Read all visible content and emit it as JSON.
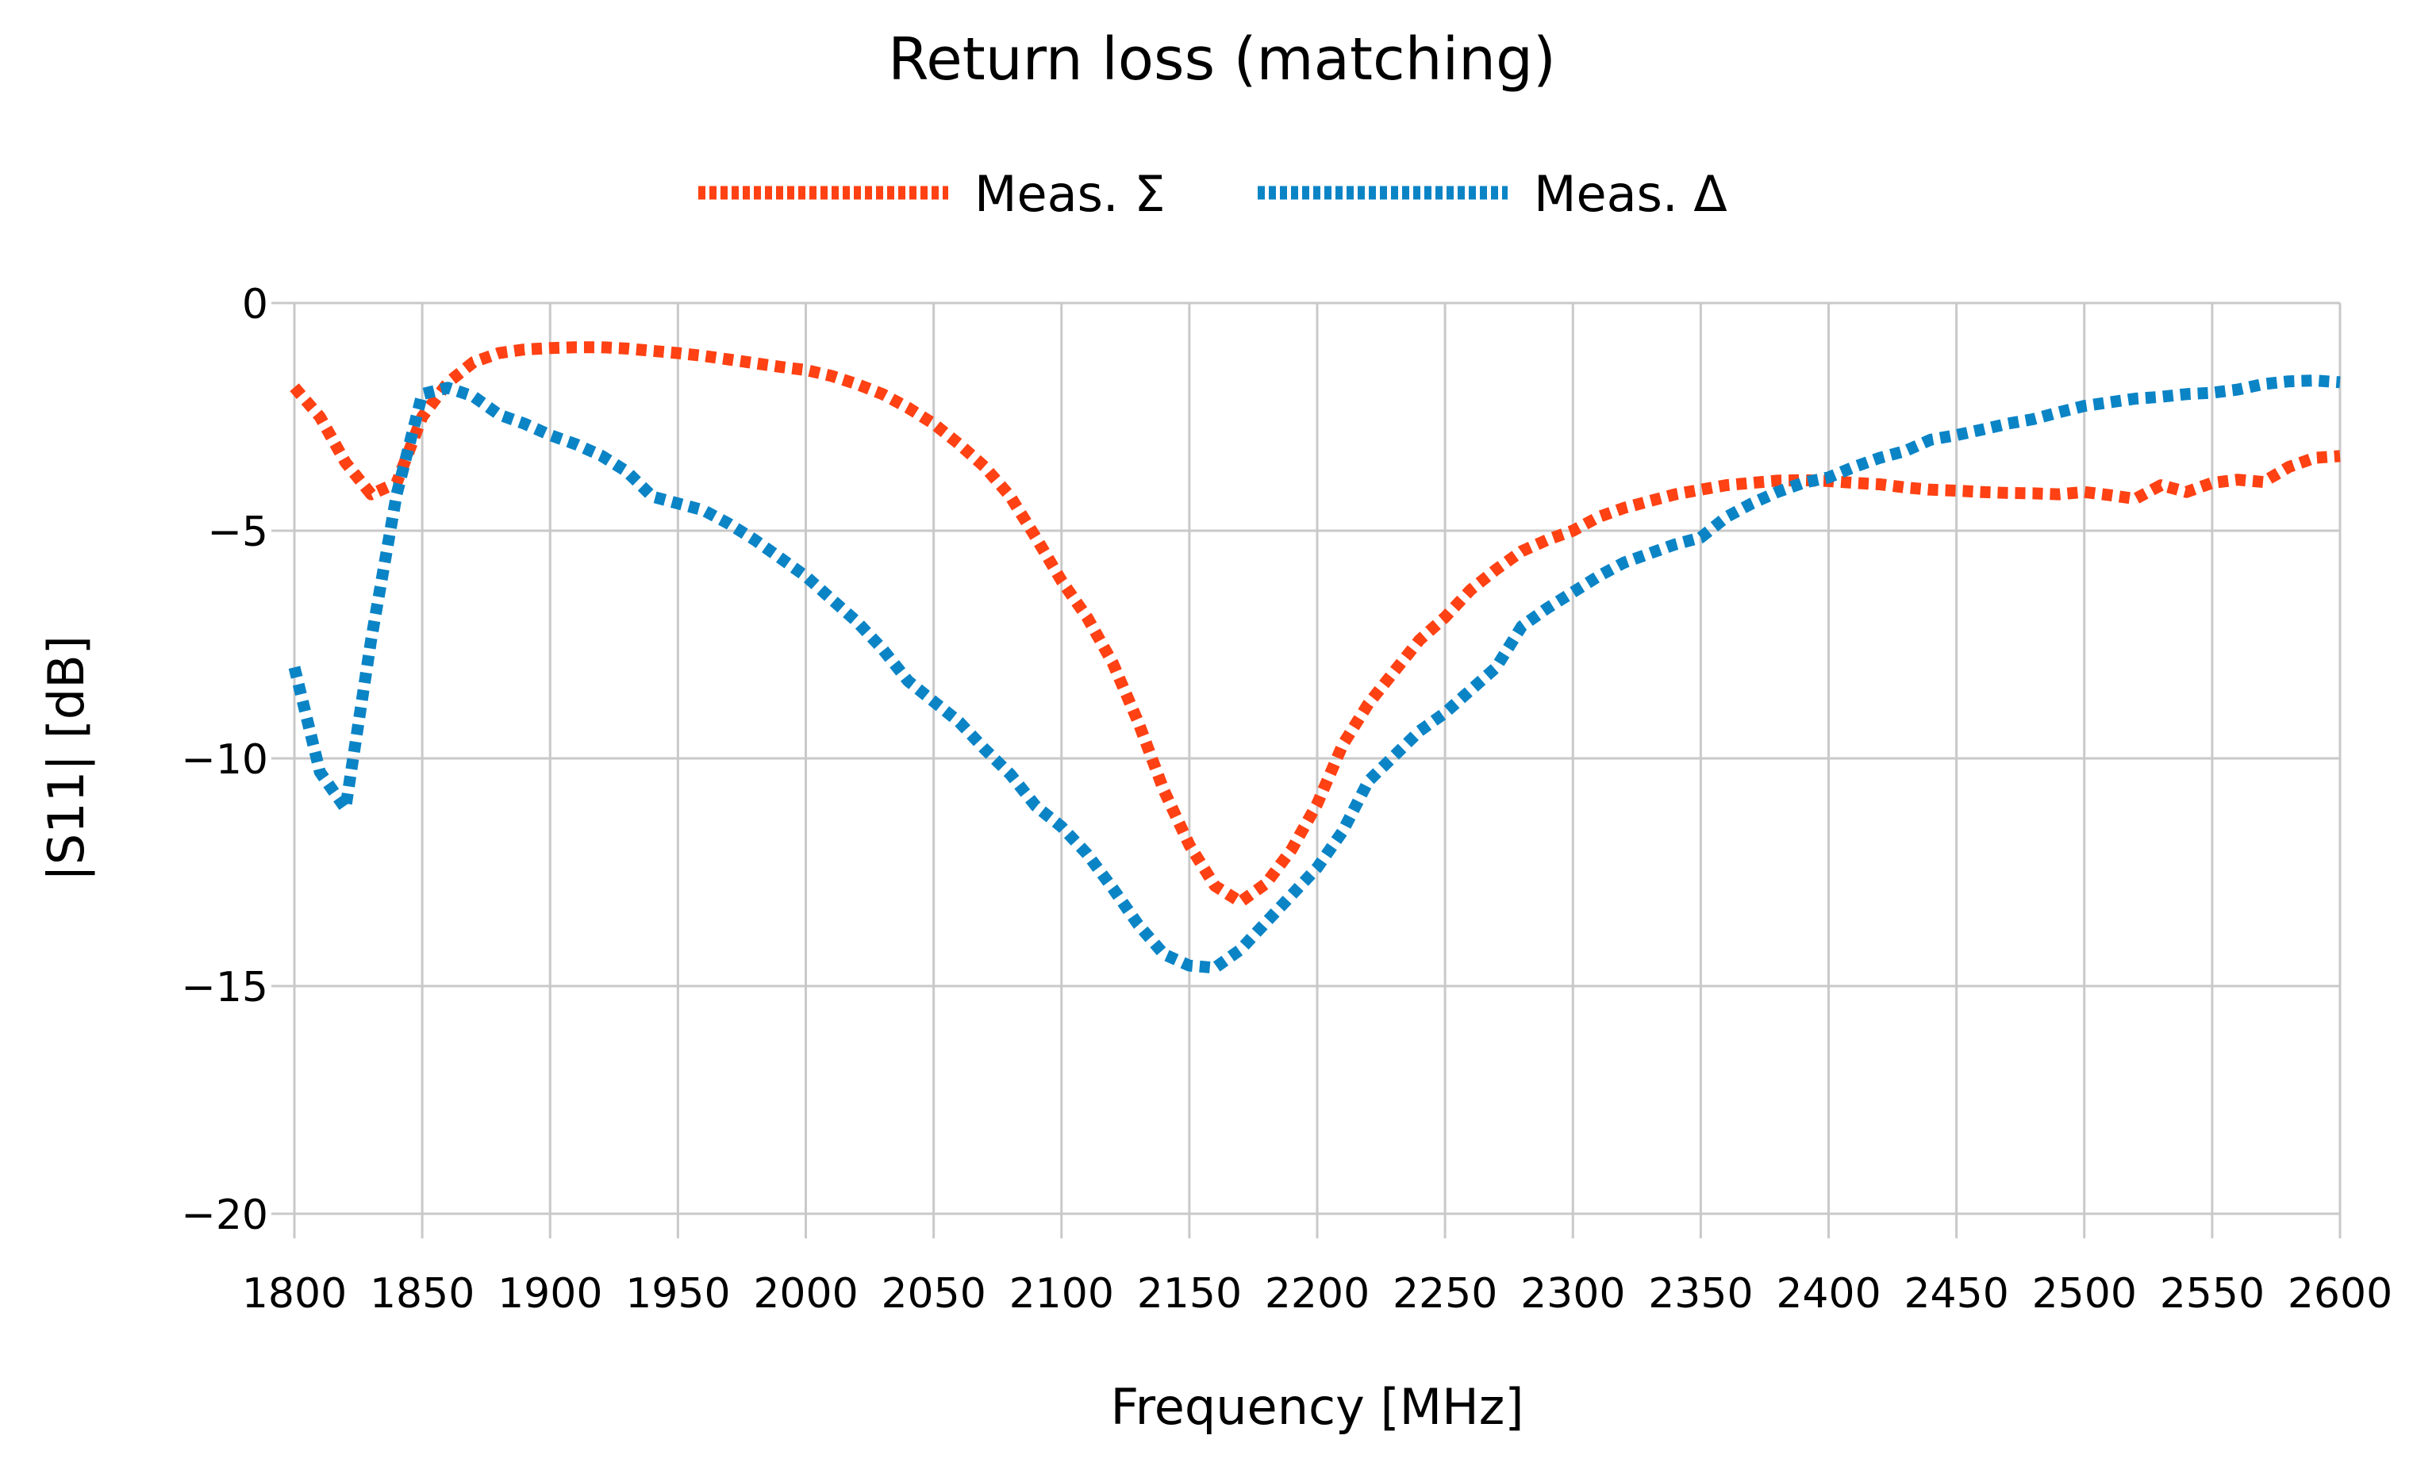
{
  "title": "Return loss (matching)",
  "legend": {
    "items": [
      {
        "label": "Meas. Σ",
        "color": "#ff4113"
      },
      {
        "label": "Meas. Δ",
        "color": "#0b84c6"
      }
    ]
  },
  "axes": {
    "xlabel": "Frequency [MHz]",
    "ylabel": "|S11| [dB]"
  },
  "chart_data": {
    "type": "line",
    "title": "Return loss (matching)",
    "xlabel": "Frequency [MHz]",
    "ylabel": "|S11| [dB]",
    "xlim": [
      1800,
      2600
    ],
    "ylim": [
      -20,
      0
    ],
    "x_ticks": [
      1800,
      1850,
      1900,
      1950,
      2000,
      2050,
      2100,
      2150,
      2200,
      2250,
      2300,
      2350,
      2400,
      2450,
      2500,
      2550,
      2600
    ],
    "y_ticks": [
      0,
      -5,
      -10,
      -15,
      -20
    ],
    "grid": true,
    "grid_color": "#c9c9c9",
    "legend_position": "top-center",
    "line_style": "dotted",
    "x": [
      1800,
      1810,
      1820,
      1830,
      1840,
      1850,
      1860,
      1870,
      1880,
      1890,
      1900,
      1910,
      1920,
      1930,
      1940,
      1950,
      1960,
      1970,
      1980,
      1990,
      2000,
      2010,
      2020,
      2030,
      2040,
      2050,
      2060,
      2070,
      2080,
      2090,
      2100,
      2110,
      2120,
      2130,
      2140,
      2150,
      2160,
      2170,
      2180,
      2190,
      2200,
      2210,
      2220,
      2230,
      2240,
      2250,
      2260,
      2270,
      2280,
      2290,
      2300,
      2310,
      2320,
      2330,
      2340,
      2350,
      2360,
      2370,
      2380,
      2390,
      2400,
      2410,
      2420,
      2430,
      2440,
      2450,
      2460,
      2470,
      2480,
      2490,
      2500,
      2510,
      2520,
      2530,
      2540,
      2550,
      2560,
      2570,
      2580,
      2590,
      2600
    ],
    "series": [
      {
        "name": "Meas. Σ",
        "color": "#ff4113",
        "values": [
          -1.85,
          -2.5,
          -3.5,
          -4.2,
          -3.95,
          -2.5,
          -1.75,
          -1.3,
          -1.1,
          -1.02,
          -0.99,
          -0.97,
          -0.97,
          -1.0,
          -1.05,
          -1.1,
          -1.16,
          -1.24,
          -1.32,
          -1.4,
          -1.47,
          -1.6,
          -1.78,
          -2.0,
          -2.3,
          -2.65,
          -3.1,
          -3.6,
          -4.25,
          -5.15,
          -6.1,
          -6.9,
          -7.9,
          -9.2,
          -10.7,
          -11.9,
          -12.8,
          -13.15,
          -12.75,
          -12.0,
          -11.0,
          -9.7,
          -8.8,
          -8.1,
          -7.4,
          -6.9,
          -6.3,
          -5.85,
          -5.45,
          -5.2,
          -5.0,
          -4.7,
          -4.5,
          -4.35,
          -4.2,
          -4.1,
          -4.0,
          -3.95,
          -3.9,
          -3.89,
          -3.91,
          -3.95,
          -3.98,
          -4.05,
          -4.1,
          -4.12,
          -4.15,
          -4.17,
          -4.18,
          -4.2,
          -4.15,
          -4.22,
          -4.3,
          -4.0,
          -4.15,
          -3.95,
          -3.88,
          -3.93,
          -3.6,
          -3.4,
          -3.36
        ]
      },
      {
        "name": "Meas. Δ",
        "color": "#0b84c6",
        "values": [
          -8.0,
          -10.3,
          -11.1,
          -7.4,
          -4.2,
          -2.0,
          -1.86,
          -2.05,
          -2.45,
          -2.65,
          -2.9,
          -3.1,
          -3.35,
          -3.7,
          -4.25,
          -4.4,
          -4.55,
          -4.85,
          -5.2,
          -5.6,
          -6.0,
          -6.5,
          -7.0,
          -7.6,
          -8.3,
          -8.75,
          -9.2,
          -9.8,
          -10.35,
          -11.05,
          -11.5,
          -12.1,
          -12.85,
          -13.65,
          -14.3,
          -14.55,
          -14.6,
          -14.2,
          -13.6,
          -13.0,
          -12.4,
          -11.6,
          -10.5,
          -9.95,
          -9.4,
          -9.0,
          -8.5,
          -8.0,
          -7.1,
          -6.7,
          -6.35,
          -6.0,
          -5.7,
          -5.5,
          -5.3,
          -5.15,
          -4.7,
          -4.4,
          -4.15,
          -3.95,
          -3.83,
          -3.6,
          -3.4,
          -3.25,
          -3.0,
          -2.9,
          -2.78,
          -2.65,
          -2.55,
          -2.4,
          -2.26,
          -2.18,
          -2.1,
          -2.06,
          -2.0,
          -1.97,
          -1.9,
          -1.78,
          -1.72,
          -1.7,
          -1.74
        ]
      }
    ]
  }
}
